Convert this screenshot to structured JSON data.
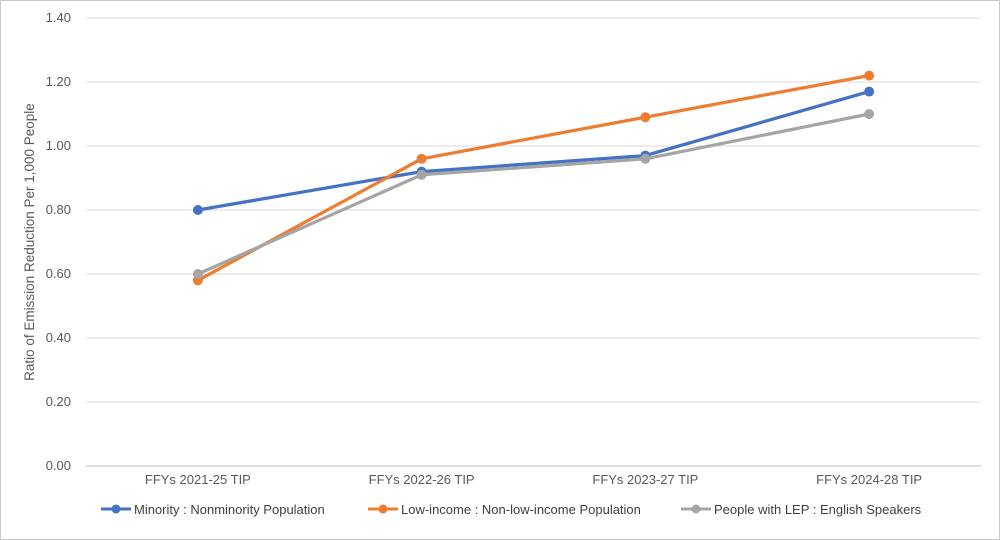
{
  "chart_data": {
    "type": "line",
    "title": "",
    "xlabel": "",
    "ylabel": "Ratio of Emission Reduction Per 1,000 People",
    "categories": [
      "FFYs 2021-25 TIP",
      "FFYs 2022-26 TIP",
      "FFYs 2023-27 TIP",
      "FFYs 2024-28 TIP"
    ],
    "series": [
      {
        "name": "Minority : Nonminority Population",
        "color": "#4472C4",
        "values": [
          0.8,
          0.92,
          0.97,
          1.17
        ]
      },
      {
        "name": "Low-income : Non-low-income Population",
        "color": "#ED7D31",
        "values": [
          0.58,
          0.96,
          1.09,
          1.22
        ]
      },
      {
        "name": "People with LEP : English Speakers",
        "color": "#A5A5A5",
        "values": [
          0.6,
          0.91,
          0.96,
          1.1
        ]
      }
    ],
    "ylim": [
      0.0,
      1.4
    ],
    "ytick_step": 0.2,
    "ytick_decimals": 2,
    "grid": true,
    "legend_position": "bottom",
    "marker": "circle",
    "colors": {
      "gridline": "#D9D9D9",
      "axis_line": "#BFBFBF",
      "tick_label": "#595959",
      "axis_title": "#595959",
      "legend_label": "#404040",
      "frame_border": "#C9C9C9",
      "background": "#FFFFFF"
    }
  }
}
